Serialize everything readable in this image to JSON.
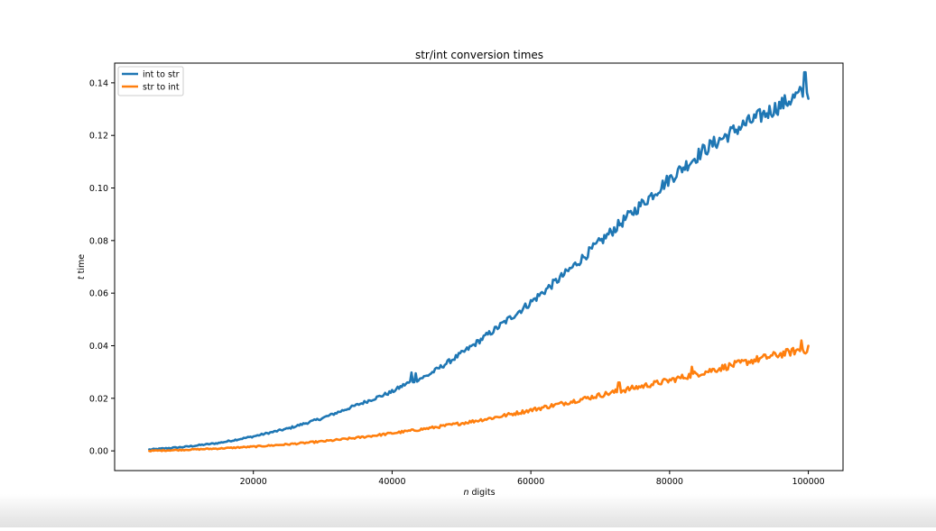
{
  "chart_data": {
    "type": "line",
    "title": "str/int conversion times",
    "xlabel_italic": "n",
    "xlabel_rest": " digits",
    "ylabel_italic": "t",
    "ylabel_rest": " time",
    "xlim": [
      0,
      105000
    ],
    "ylim": [
      -0.0075,
      0.1475
    ],
    "xticks": [
      {
        "value": 20000,
        "label": "20000"
      },
      {
        "value": 40000,
        "label": "40000"
      },
      {
        "value": 60000,
        "label": "60000"
      },
      {
        "value": 80000,
        "label": "80000"
      },
      {
        "value": 100000,
        "label": "100000"
      }
    ],
    "yticks": [
      {
        "value": 0.0,
        "label": "0.00"
      },
      {
        "value": 0.02,
        "label": "0.02"
      },
      {
        "value": 0.04,
        "label": "0.04"
      },
      {
        "value": 0.06,
        "label": "0.06"
      },
      {
        "value": 0.08,
        "label": "0.08"
      },
      {
        "value": 0.1,
        "label": "0.10"
      },
      {
        "value": 0.12,
        "label": "0.12"
      },
      {
        "value": 0.14,
        "label": "0.14"
      }
    ],
    "grid": false,
    "legend_position": "top-left",
    "x": [
      5000,
      10000,
      15000,
      20000,
      25000,
      30000,
      35000,
      40000,
      42000,
      45000,
      50000,
      55000,
      60000,
      65000,
      70000,
      75000,
      80000,
      85000,
      90000,
      95000,
      99000,
      100000
    ],
    "series": [
      {
        "name": "int to str",
        "color": "#1f77b4",
        "values": [
          0.0005,
          0.0015,
          0.003,
          0.0055,
          0.0085,
          0.0125,
          0.0175,
          0.0225,
          0.0255,
          0.0285,
          0.037,
          0.0465,
          0.0565,
          0.0675,
          0.0795,
          0.0915,
          0.1035,
          0.1145,
          0.123,
          0.13,
          0.136,
          0.1355
        ],
        "spikes": [
          {
            "x": 42800,
            "y": 0.0298
          },
          {
            "x": 43400,
            "y": 0.0295
          },
          {
            "x": 99500,
            "y": 0.144
          }
        ]
      },
      {
        "name": "str to int",
        "color": "#ff7f0e",
        "values": [
          0.0,
          0.0004,
          0.0009,
          0.0016,
          0.0025,
          0.0036,
          0.005,
          0.0067,
          0.0074,
          0.0085,
          0.0105,
          0.0128,
          0.0155,
          0.0183,
          0.0212,
          0.024,
          0.0268,
          0.03,
          0.0332,
          0.0362,
          0.0385,
          0.0385
        ],
        "spikes": [
          {
            "x": 72700,
            "y": 0.026
          },
          {
            "x": 83200,
            "y": 0.032
          },
          {
            "x": 99000,
            "y": 0.042
          }
        ]
      }
    ]
  }
}
